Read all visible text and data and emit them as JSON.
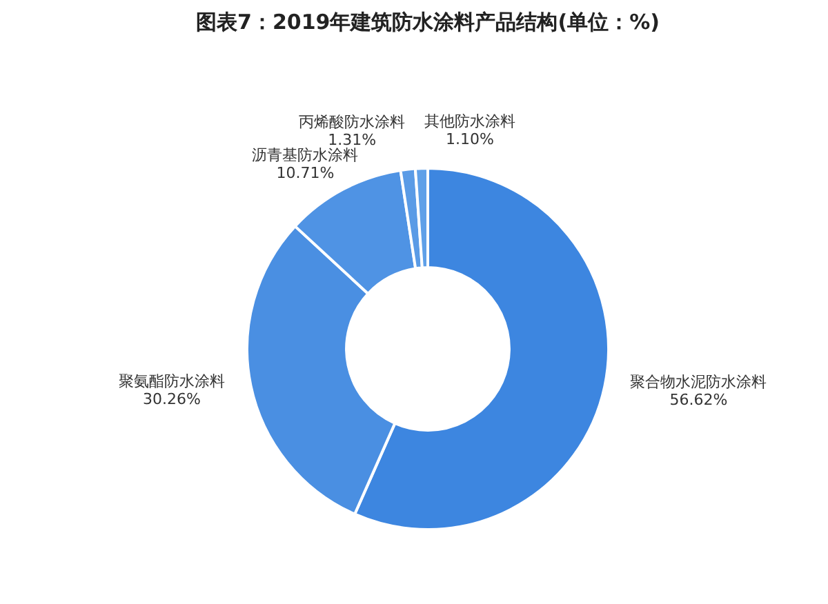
{
  "chart_data": {
    "type": "donut",
    "title": "图表7：2019年建筑防水涂料产品结构(单位：%)",
    "categories": [
      "聚合物水泥防水涂料",
      "聚氨酯防水涂料",
      "沥青基防水涂料",
      "丙烯酸防水涂料",
      "其他防水涂料"
    ],
    "values": [
      56.62,
      30.26,
      10.71,
      1.31,
      1.1
    ],
    "value_labels": [
      "56.62%",
      "30.26%",
      "10.71%",
      "1.31%",
      "1.10%"
    ],
    "colors": [
      "#3d86e0",
      "#4a8fe2",
      "#4f93e4",
      "#5a9be6",
      "#5fa0e8"
    ],
    "legend": false
  }
}
